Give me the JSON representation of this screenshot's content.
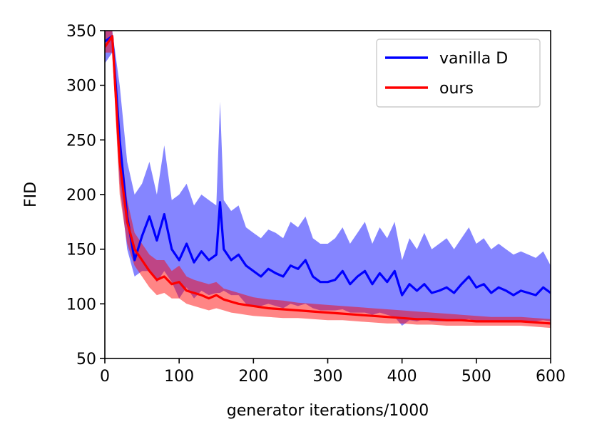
{
  "chart_data": {
    "type": "line",
    "title": "",
    "xlabel": "generator iterations/1000",
    "ylabel": "FID",
    "xlim": [
      0,
      600
    ],
    "ylim": [
      50,
      350
    ],
    "xticks": [
      0,
      100,
      200,
      300,
      400,
      500,
      600
    ],
    "yticks": [
      50,
      100,
      150,
      200,
      250,
      300,
      350
    ],
    "legend_position": "top-right",
    "grid": false,
    "series": [
      {
        "name": "vanilla D",
        "color": "#0000ff",
        "band_color": "#0000ff",
        "x": [
          0,
          10,
          20,
          30,
          40,
          50,
          60,
          70,
          80,
          90,
          100,
          110,
          120,
          130,
          140,
          150,
          155,
          160,
          170,
          180,
          190,
          200,
          210,
          220,
          230,
          240,
          250,
          260,
          270,
          280,
          290,
          300,
          310,
          320,
          330,
          340,
          350,
          360,
          370,
          380,
          390,
          400,
          410,
          420,
          430,
          440,
          450,
          460,
          470,
          480,
          490,
          500,
          510,
          520,
          530,
          540,
          550,
          560,
          570,
          580,
          590,
          600
        ],
        "values": [
          340,
          345,
          250,
          180,
          140,
          162,
          180,
          158,
          182,
          150,
          140,
          155,
          138,
          148,
          140,
          145,
          193,
          150,
          140,
          145,
          135,
          130,
          125,
          132,
          128,
          125,
          135,
          132,
          140,
          125,
          120,
          120,
          122,
          130,
          118,
          125,
          130,
          118,
          128,
          120,
          130,
          108,
          118,
          112,
          118,
          110,
          112,
          115,
          110,
          118,
          125,
          115,
          118,
          110,
          115,
          112,
          108,
          112,
          110,
          108,
          115,
          110
        ],
        "lower": [
          320,
          330,
          210,
          150,
          125,
          130,
          130,
          120,
          130,
          120,
          105,
          115,
          105,
          112,
          108,
          110,
          110,
          112,
          108,
          108,
          100,
          98,
          98,
          100,
          98,
          96,
          100,
          98,
          100,
          96,
          94,
          94,
          94,
          95,
          92,
          92,
          92,
          90,
          92,
          90,
          88,
          80,
          85,
          84,
          86,
          84,
          84,
          84,
          84,
          85,
          86,
          84,
          84,
          84,
          84,
          84,
          84,
          84,
          84,
          84,
          85,
          84
        ],
        "upper": [
          350,
          350,
          300,
          230,
          200,
          210,
          230,
          200,
          245,
          195,
          200,
          210,
          190,
          200,
          195,
          190,
          285,
          195,
          185,
          190,
          170,
          165,
          160,
          168,
          165,
          160,
          175,
          170,
          180,
          160,
          155,
          155,
          160,
          170,
          155,
          165,
          175,
          155,
          170,
          160,
          175,
          140,
          160,
          150,
          165,
          150,
          155,
          160,
          150,
          160,
          170,
          155,
          160,
          150,
          155,
          150,
          145,
          148,
          145,
          142,
          148,
          135
        ]
      },
      {
        "name": "ours",
        "color": "#ff0000",
        "band_color": "#ff0000",
        "x": [
          0,
          10,
          20,
          30,
          40,
          50,
          60,
          70,
          80,
          90,
          100,
          110,
          120,
          130,
          140,
          150,
          160,
          170,
          180,
          190,
          200,
          220,
          240,
          260,
          280,
          300,
          320,
          340,
          360,
          380,
          400,
          420,
          440,
          460,
          480,
          500,
          520,
          540,
          560,
          580,
          600
        ],
        "values": [
          335,
          345,
          230,
          175,
          150,
          140,
          130,
          122,
          125,
          118,
          120,
          112,
          110,
          108,
          105,
          108,
          104,
          102,
          100,
          99,
          98,
          96,
          95,
          94,
          93,
          92,
          91,
          90,
          89,
          88,
          87,
          86,
          86,
          85,
          85,
          84,
          84,
          84,
          84,
          83,
          82
        ],
        "lower": [
          330,
          330,
          200,
          155,
          135,
          125,
          115,
          108,
          110,
          105,
          105,
          100,
          98,
          96,
          94,
          96,
          94,
          92,
          91,
          90,
          89,
          88,
          87,
          87,
          86,
          85,
          85,
          84,
          83,
          82,
          82,
          81,
          81,
          80,
          80,
          80,
          80,
          80,
          80,
          79,
          78
        ],
        "upper": [
          350,
          350,
          255,
          195,
          165,
          155,
          145,
          140,
          140,
          130,
          135,
          125,
          122,
          120,
          118,
          120,
          114,
          112,
          110,
          108,
          106,
          104,
          103,
          101,
          100,
          99,
          98,
          97,
          96,
          95,
          94,
          93,
          92,
          91,
          90,
          89,
          88,
          88,
          88,
          87,
          86
        ]
      }
    ]
  }
}
